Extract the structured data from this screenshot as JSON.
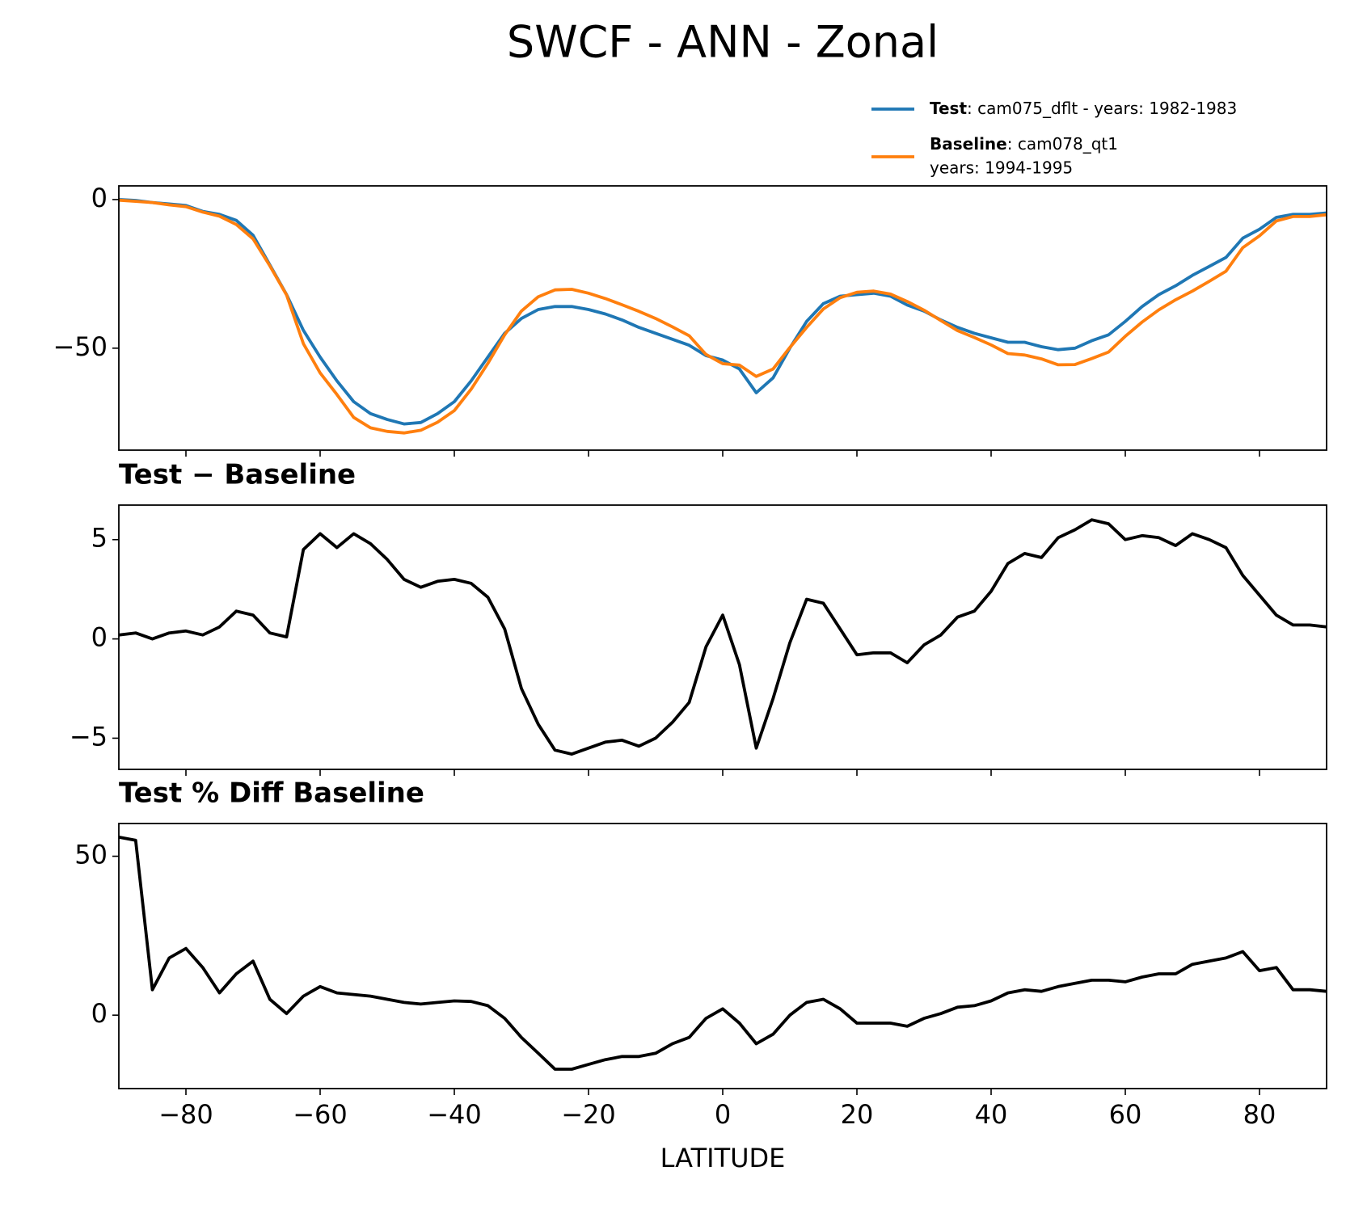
{
  "title": "SWCF - ANN - Zonal",
  "chart_data": [
    {
      "type": "line",
      "x": [
        -90,
        -87.5,
        -85,
        -82.5,
        -80,
        -77.5,
        -75,
        -72.5,
        -70,
        -67.5,
        -65,
        -62.5,
        -60,
        -57.5,
        -55,
        -52.5,
        -50,
        -47.5,
        -45,
        -42.5,
        -40,
        -37.5,
        -35,
        -32.5,
        -30,
        -27.5,
        -25,
        -22.5,
        -20,
        -17.5,
        -15,
        -12.5,
        -10,
        -7.5,
        -5,
        -2.5,
        0,
        2.5,
        5,
        7.5,
        10,
        12.5,
        15,
        17.5,
        20,
        22.5,
        25,
        27.5,
        30,
        32.5,
        35,
        37.5,
        40,
        42.5,
        45,
        47.5,
        50,
        52.5,
        55,
        57.5,
        60,
        62.5,
        65,
        67.5,
        70,
        72.5,
        75,
        77.5,
        80,
        82.5,
        85,
        87.5,
        90
      ],
      "series": [
        {
          "name": "Test",
          "description": [
            ": cam075_dflt - years: 1982-1983"
          ],
          "color": "#1f77b4",
          "values": [
            0,
            -0.3,
            -1,
            -1.5,
            -2,
            -4,
            -5,
            -7,
            -12,
            -22,
            -32,
            -44,
            -53,
            -61,
            -68,
            -72,
            -74,
            -75.5,
            -75,
            -72,
            -68,
            -61,
            -53,
            -45,
            -40,
            -37,
            -36,
            -36,
            -37,
            -38.5,
            -40.5,
            -43,
            -45,
            -47,
            -49,
            -52.5,
            -54,
            -57,
            -65,
            -60,
            -50,
            -41,
            -35,
            -32.5,
            -32,
            -31.5,
            -32.5,
            -35.5,
            -37.5,
            -40.5,
            -43,
            -45,
            -46.5,
            -48,
            -48,
            -49.5,
            -50.5,
            -50,
            -47.5,
            -45.5,
            -41,
            -36,
            -32,
            -29,
            -25.5,
            -22.5,
            -19.5,
            -13,
            -10,
            -6,
            -5,
            -5,
            -4.5
          ]
        },
        {
          "name": "Baseline",
          "description": [
            ": cam078_qt1",
            "years: 1994-1995"
          ],
          "color": "#ff7f0e",
          "values": [
            -0.2,
            -0.6,
            -1,
            -1.8,
            -2.4,
            -4.2,
            -5.6,
            -8.4,
            -13.2,
            -22.3,
            -32.1,
            -48.5,
            -58.3,
            -65.6,
            -73.3,
            -76.8,
            -78,
            -78.5,
            -77.6,
            -74.9,
            -71,
            -63.8,
            -55.1,
            -45.5,
            -37.5,
            -32.7,
            -30.4,
            -30.2,
            -31.5,
            -33.3,
            -35.4,
            -37.6,
            -40,
            -42.8,
            -45.8,
            -52.1,
            -55.2,
            -55.7,
            -59.5,
            -57,
            -49.8,
            -43,
            -36.8,
            -33,
            -31.2,
            -30.8,
            -31.8,
            -34.3,
            -37.2,
            -40.7,
            -44.1,
            -46.4,
            -48.9,
            -51.8,
            -52.3,
            -53.6,
            -55.6,
            -55.5,
            -53.5,
            -51.3,
            -46,
            -41.2,
            -37.1,
            -33.7,
            -30.8,
            -27.5,
            -24.1,
            -16.2,
            -12.2,
            -7.2,
            -5.7,
            -5.7,
            -5.1
          ]
        }
      ],
      "legend": "upper right",
      "xlim": [
        -90,
        90
      ],
      "xticks": [
        -80,
        -60,
        -40,
        -20,
        0,
        20,
        40,
        60,
        80
      ],
      "xticklabels": false,
      "ylim": [
        -84.3,
        4.6
      ],
      "yticks": [
        {
          "value": -50,
          "label": "−50"
        },
        0
      ]
    },
    {
      "type": "line",
      "title": "Test − Baseline",
      "x": [
        -90,
        -87.5,
        -85,
        -82.5,
        -80,
        -77.5,
        -75,
        -72.5,
        -70,
        -67.5,
        -65,
        -62.5,
        -60,
        -57.5,
        -55,
        -52.5,
        -50,
        -47.5,
        -45,
        -42.5,
        -40,
        -37.5,
        -35,
        -32.5,
        -30,
        -27.5,
        -25,
        -22.5,
        -20,
        -17.5,
        -15,
        -12.5,
        -10,
        -7.5,
        -5,
        -2.5,
        0,
        2.5,
        5,
        7.5,
        10,
        12.5,
        15,
        17.5,
        20,
        22.5,
        25,
        27.5,
        30,
        32.5,
        35,
        37.5,
        40,
        42.5,
        45,
        47.5,
        50,
        52.5,
        55,
        57.5,
        60,
        62.5,
        65,
        67.5,
        70,
        72.5,
        75,
        77.5,
        80,
        82.5,
        85,
        87.5,
        90
      ],
      "series": [
        {
          "color": "#000000",
          "values": [
            0.2,
            0.3,
            0,
            0.3,
            0.4,
            0.2,
            0.6,
            1.4,
            1.2,
            0.3,
            0.1,
            4.5,
            5.3,
            4.6,
            5.3,
            4.8,
            4,
            3,
            2.6,
            2.9,
            3,
            2.8,
            2.1,
            0.5,
            -2.5,
            -4.3,
            -5.6,
            -5.8,
            -5.5,
            -5.2,
            -5.1,
            -5.4,
            -5,
            -4.2,
            -3.2,
            -0.4,
            1.2,
            -1.3,
            -5.5,
            -3,
            -0.2,
            2,
            1.8,
            0.5,
            -0.8,
            -0.7,
            -0.7,
            -1.2,
            -0.3,
            0.2,
            1.1,
            1.4,
            2.4,
            3.8,
            4.3,
            4.1,
            5.1,
            5.5,
            6,
            5.8,
            5,
            5.2,
            5.1,
            4.7,
            5.3,
            5,
            4.6,
            3.2,
            2.2,
            1.2,
            0.7,
            0.7,
            0.6
          ]
        }
      ],
      "xlim": [
        -90,
        90
      ],
      "xticks": [
        -80,
        -60,
        -40,
        -20,
        0,
        20,
        40,
        60,
        80
      ],
      "xticklabels": false,
      "ylim": [
        -6.57,
        6.74
      ],
      "yticks": [
        {
          "value": -5,
          "label": "−5"
        },
        0,
        5
      ]
    },
    {
      "type": "line",
      "title": "Test % Diff Baseline",
      "xlabel": "LATITUDE",
      "x": [
        -90,
        -87.5,
        -85,
        -82.5,
        -80,
        -77.5,
        -75,
        -72.5,
        -70,
        -67.5,
        -65,
        -62.5,
        -60,
        -57.5,
        -55,
        -52.5,
        -50,
        -47.5,
        -45,
        -42.5,
        -40,
        -37.5,
        -35,
        -32.5,
        -30,
        -27.5,
        -25,
        -22.5,
        -20,
        -17.5,
        -15,
        -12.5,
        -10,
        -7.5,
        -5,
        -2.5,
        0,
        2.5,
        5,
        7.5,
        10,
        12.5,
        15,
        17.5,
        20,
        22.5,
        25,
        27.5,
        30,
        32.5,
        35,
        37.5,
        40,
        42.5,
        45,
        47.5,
        50,
        52.5,
        55,
        57.5,
        60,
        62.5,
        65,
        67.5,
        70,
        72.5,
        75,
        77.5,
        80,
        82.5,
        85,
        87.5,
        90
      ],
      "series": [
        {
          "color": "#000000",
          "values": [
            56,
            55,
            8,
            18,
            21,
            15,
            7,
            13,
            17,
            5,
            0.5,
            6,
            9,
            7,
            6.5,
            6,
            5,
            4,
            3.5,
            4,
            4.5,
            4.3,
            3,
            -1,
            -7,
            -12,
            -17,
            -17,
            -15.5,
            -14,
            -13,
            -13,
            -12,
            -9,
            -7,
            -1,
            2,
            -2.5,
            -9,
            -6,
            0,
            4,
            5,
            2,
            -2.5,
            -2.5,
            -2.5,
            -3.5,
            -1,
            0.5,
            2.5,
            3,
            4.5,
            7,
            8,
            7.5,
            9,
            10,
            11,
            11,
            10.5,
            12,
            13,
            13,
            16,
            17,
            18,
            20,
            14,
            15,
            8,
            8,
            7.5
          ]
        }
      ],
      "xlim": [
        -90,
        90
      ],
      "xticks": [
        {
          "value": -80,
          "label": "−80"
        },
        {
          "value": -60,
          "label": "−60"
        },
        {
          "value": -40,
          "label": "−40"
        },
        {
          "value": -20,
          "label": "−20"
        },
        0,
        20,
        40,
        60,
        80
      ],
      "ylim": [
        -23.1,
        60.3
      ],
      "yticks": [
        0,
        50
      ]
    }
  ]
}
